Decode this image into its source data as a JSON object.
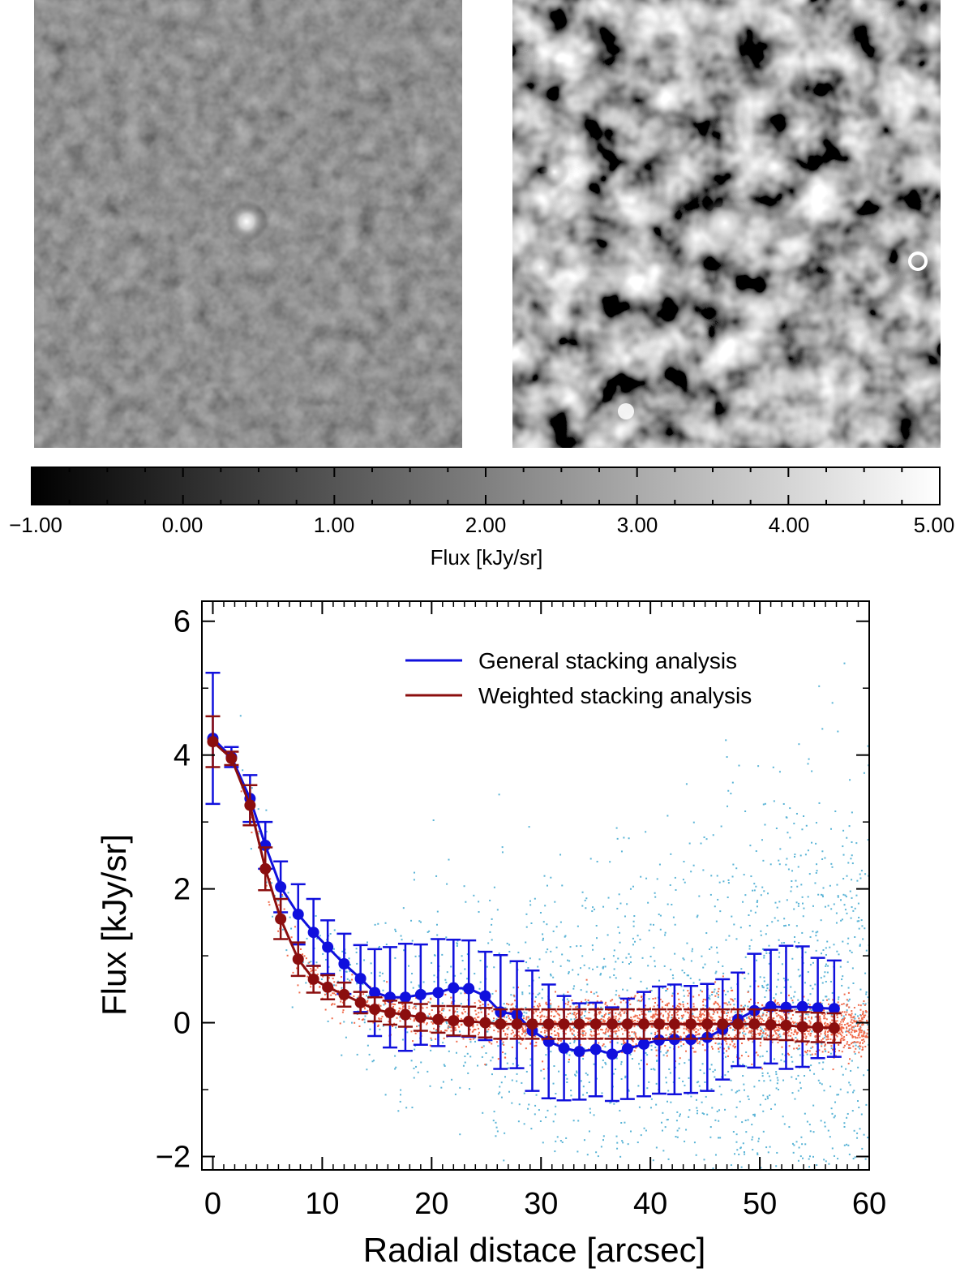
{
  "images": {
    "left": {
      "description_name": "general-stack-image"
    },
    "right": {
      "description_name": "weighted-stack-image"
    }
  },
  "colorbar": {
    "ticks": [
      "−1.00",
      "0.00",
      "1.00",
      "2.00",
      "3.00",
      "4.00",
      "5.00"
    ],
    "range": [
      -1,
      5
    ],
    "label": "Flux [kJy/sr]"
  },
  "chart_data": {
    "type": "line",
    "xlabel": "Radial distace [arcsec]",
    "ylabel": "Flux [kJy/sr]",
    "xlim": [
      -1,
      60
    ],
    "ylim": [
      -2.2,
      6.3
    ],
    "xticks": [
      0,
      10,
      20,
      30,
      40,
      50,
      60
    ],
    "yticks": [
      -2,
      0,
      2,
      4,
      6
    ],
    "colors": {
      "general": "#1010dd",
      "weighted": "#8b0e0e",
      "general_scatter": "#5ab4d6",
      "weighted_scatter": "#f06a4a"
    },
    "series": [
      {
        "name": "General stacking analysis",
        "x": [
          0,
          1.7,
          3.4,
          4.8,
          6.2,
          7.8,
          9.2,
          10.5,
          12.0,
          13.5,
          14.8,
          16.2,
          17.6,
          19.0,
          20.6,
          22.0,
          23.4,
          24.9,
          26.3,
          27.8,
          29.2,
          30.7,
          32.1,
          33.5,
          35.0,
          36.5,
          37.9,
          39.4,
          40.8,
          42.2,
          43.7,
          45.2,
          46.6,
          48.0,
          49.5,
          51.0,
          52.4,
          53.9,
          55.3,
          56.8
        ],
        "y": [
          4.25,
          3.97,
          3.35,
          2.65,
          2.03,
          1.62,
          1.35,
          1.13,
          0.88,
          0.66,
          0.45,
          0.38,
          0.38,
          0.42,
          0.45,
          0.52,
          0.51,
          0.4,
          0.16,
          0.12,
          -0.12,
          -0.28,
          -0.38,
          -0.43,
          -0.4,
          -0.47,
          -0.39,
          -0.32,
          -0.26,
          -0.25,
          -0.25,
          -0.22,
          -0.1,
          0.05,
          0.18,
          0.24,
          0.23,
          0.24,
          0.22,
          0.21
        ],
        "err": [
          0.98,
          0.15,
          0.35,
          0.35,
          0.38,
          0.45,
          0.5,
          0.4,
          0.45,
          0.5,
          0.65,
          0.75,
          0.8,
          0.75,
          0.8,
          0.72,
          0.72,
          0.66,
          0.85,
          0.8,
          0.9,
          0.85,
          0.78,
          0.72,
          0.7,
          0.7,
          0.75,
          0.78,
          0.8,
          0.82,
          0.8,
          0.8,
          0.75,
          0.7,
          0.85,
          0.85,
          0.92,
          0.9,
          0.75,
          0.72
        ]
      },
      {
        "name": "Weighted stacking analysis",
        "x": [
          0,
          1.7,
          3.4,
          4.8,
          6.2,
          7.8,
          9.2,
          10.5,
          12.0,
          13.5,
          14.8,
          16.2,
          17.6,
          19.0,
          20.6,
          22.0,
          23.4,
          24.9,
          26.3,
          27.8,
          29.2,
          30.7,
          32.1,
          33.5,
          35.0,
          36.5,
          37.9,
          39.4,
          40.8,
          42.2,
          43.7,
          45.2,
          46.6,
          48.0,
          49.5,
          51.0,
          52.4,
          53.9,
          55.3,
          56.8
        ],
        "y": [
          4.2,
          3.95,
          3.25,
          2.3,
          1.55,
          0.95,
          0.65,
          0.53,
          0.42,
          0.3,
          0.2,
          0.15,
          0.12,
          0.08,
          0.05,
          0.03,
          0.02,
          0.0,
          -0.02,
          -0.02,
          -0.02,
          -0.02,
          -0.02,
          -0.02,
          -0.02,
          -0.02,
          -0.02,
          -0.02,
          -0.02,
          -0.02,
          -0.02,
          -0.02,
          -0.02,
          -0.02,
          -0.02,
          -0.03,
          -0.04,
          -0.06,
          -0.07,
          -0.08
        ],
        "err": [
          0.38,
          0.1,
          0.3,
          0.32,
          0.3,
          0.25,
          0.2,
          0.18,
          0.18,
          0.16,
          0.18,
          0.18,
          0.18,
          0.2,
          0.2,
          0.22,
          0.22,
          0.22,
          0.22,
          0.22,
          0.22,
          0.22,
          0.22,
          0.22,
          0.22,
          0.22,
          0.22,
          0.22,
          0.22,
          0.22,
          0.22,
          0.22,
          0.22,
          0.22,
          0.22,
          0.22,
          0.22,
          0.22,
          0.22,
          0.22
        ]
      }
    ],
    "legend": [
      "General stacking analysis",
      "Weighted stacking analysis"
    ]
  }
}
